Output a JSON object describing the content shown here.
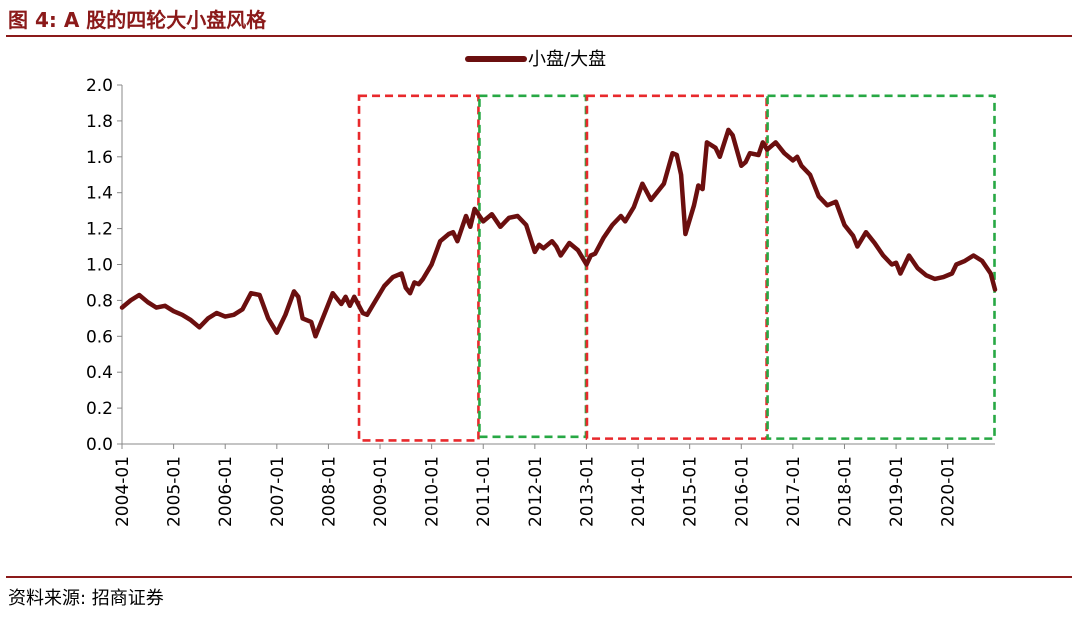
{
  "figure": {
    "title": "图 4:  A 股的四轮大小盘风格",
    "source": "资料来源:  招商证券"
  },
  "colors": {
    "accent": "#8B1A1A",
    "series_line": "#6B0F0F",
    "red_box": "#E8292C",
    "green_box": "#27A844"
  },
  "chart_data": {
    "type": "line",
    "title": "",
    "xlabel": "",
    "ylabel": "",
    "ylim": [
      0,
      2.0
    ],
    "yticks": [
      "0.0",
      "0.2",
      "0.4",
      "0.6",
      "0.8",
      "1.0",
      "1.2",
      "1.4",
      "1.6",
      "1.8",
      "2.0"
    ],
    "xticks": [
      "2004-01",
      "2005-01",
      "2006-01",
      "2007-01",
      "2008-01",
      "2009-01",
      "2010-01",
      "2011-01",
      "2012-01",
      "2013-01",
      "2014-01",
      "2015-01",
      "2016-01",
      "2017-01",
      "2018-01",
      "2019-01",
      "2020-01"
    ],
    "xrange": [
      "2004-01",
      "2020-12"
    ],
    "grid": false,
    "legend": {
      "position": "top-center"
    },
    "series": [
      {
        "name": "小盘/大盘",
        "points": [
          [
            "2004-01",
            0.76
          ],
          [
            "2004-03",
            0.8
          ],
          [
            "2004-05",
            0.83
          ],
          [
            "2004-07",
            0.79
          ],
          [
            "2004-09",
            0.76
          ],
          [
            "2004-11",
            0.77
          ],
          [
            "2005-01",
            0.74
          ],
          [
            "2005-03",
            0.72
          ],
          [
            "2005-05",
            0.69
          ],
          [
            "2005-07",
            0.65
          ],
          [
            "2005-09",
            0.7
          ],
          [
            "2005-11",
            0.73
          ],
          [
            "2006-01",
            0.71
          ],
          [
            "2006-03",
            0.72
          ],
          [
            "2006-05",
            0.75
          ],
          [
            "2006-07",
            0.84
          ],
          [
            "2006-09",
            0.83
          ],
          [
            "2006-11",
            0.7
          ],
          [
            "2007-01",
            0.62
          ],
          [
            "2007-03",
            0.72
          ],
          [
            "2007-05",
            0.85
          ],
          [
            "2007-06",
            0.82
          ],
          [
            "2007-07",
            0.7
          ],
          [
            "2007-09",
            0.68
          ],
          [
            "2007-10",
            0.6
          ],
          [
            "2007-12",
            0.72
          ],
          [
            "2008-02",
            0.84
          ],
          [
            "2008-04",
            0.78
          ],
          [
            "2008-05",
            0.82
          ],
          [
            "2008-06",
            0.77
          ],
          [
            "2008-07",
            0.82
          ],
          [
            "2008-09",
            0.73
          ],
          [
            "2008-10",
            0.72
          ],
          [
            "2008-12",
            0.8
          ],
          [
            "2009-02",
            0.88
          ],
          [
            "2009-04",
            0.93
          ],
          [
            "2009-06",
            0.95
          ],
          [
            "2009-07",
            0.87
          ],
          [
            "2009-08",
            0.84
          ],
          [
            "2009-09",
            0.9
          ],
          [
            "2009-10",
            0.89
          ],
          [
            "2009-11",
            0.92
          ],
          [
            "2010-01",
            1.0
          ],
          [
            "2010-03",
            1.13
          ],
          [
            "2010-05",
            1.17
          ],
          [
            "2010-06",
            1.18
          ],
          [
            "2010-07",
            1.13
          ],
          [
            "2010-09",
            1.27
          ],
          [
            "2010-10",
            1.21
          ],
          [
            "2010-11",
            1.31
          ],
          [
            "2011-01",
            1.24
          ],
          [
            "2011-03",
            1.28
          ],
          [
            "2011-05",
            1.21
          ],
          [
            "2011-07",
            1.26
          ],
          [
            "2011-09",
            1.27
          ],
          [
            "2011-11",
            1.22
          ],
          [
            "2012-01",
            1.07
          ],
          [
            "2012-02",
            1.11
          ],
          [
            "2012-03",
            1.09
          ],
          [
            "2012-05",
            1.13
          ],
          [
            "2012-06",
            1.1
          ],
          [
            "2012-07",
            1.05
          ],
          [
            "2012-09",
            1.12
          ],
          [
            "2012-11",
            1.08
          ],
          [
            "2013-01",
            1.0
          ],
          [
            "2013-02",
            1.05
          ],
          [
            "2013-03",
            1.06
          ],
          [
            "2013-05",
            1.15
          ],
          [
            "2013-07",
            1.22
          ],
          [
            "2013-09",
            1.27
          ],
          [
            "2013-10",
            1.24
          ],
          [
            "2013-12",
            1.32
          ],
          [
            "2014-02",
            1.45
          ],
          [
            "2014-04",
            1.36
          ],
          [
            "2014-06",
            1.42
          ],
          [
            "2014-07",
            1.45
          ],
          [
            "2014-09",
            1.62
          ],
          [
            "2014-10",
            1.61
          ],
          [
            "2014-11",
            1.5
          ],
          [
            "2014-12",
            1.17
          ],
          [
            "2015-02",
            1.33
          ],
          [
            "2015-03",
            1.44
          ],
          [
            "2015-04",
            1.42
          ],
          [
            "2015-05",
            1.68
          ],
          [
            "2015-07",
            1.65
          ],
          [
            "2015-08",
            1.6
          ],
          [
            "2015-10",
            1.75
          ],
          [
            "2015-11",
            1.72
          ],
          [
            "2016-01",
            1.55
          ],
          [
            "2016-02",
            1.57
          ],
          [
            "2016-03",
            1.62
          ],
          [
            "2016-05",
            1.61
          ],
          [
            "2016-06",
            1.68
          ],
          [
            "2016-07",
            1.64
          ],
          [
            "2016-09",
            1.68
          ],
          [
            "2016-11",
            1.62
          ],
          [
            "2017-01",
            1.58
          ],
          [
            "2017-02",
            1.6
          ],
          [
            "2017-03",
            1.55
          ],
          [
            "2017-05",
            1.5
          ],
          [
            "2017-07",
            1.38
          ],
          [
            "2017-09",
            1.33
          ],
          [
            "2017-11",
            1.35
          ],
          [
            "2018-01",
            1.22
          ],
          [
            "2018-03",
            1.16
          ],
          [
            "2018-04",
            1.1
          ],
          [
            "2018-06",
            1.18
          ],
          [
            "2018-08",
            1.12
          ],
          [
            "2018-10",
            1.05
          ],
          [
            "2018-12",
            1.0
          ],
          [
            "2019-01",
            1.01
          ],
          [
            "2019-02",
            0.95
          ],
          [
            "2019-04",
            1.05
          ],
          [
            "2019-06",
            0.98
          ],
          [
            "2019-08",
            0.94
          ],
          [
            "2019-10",
            0.92
          ],
          [
            "2019-12",
            0.93
          ],
          [
            "2020-02",
            0.95
          ],
          [
            "2020-03",
            1.0
          ],
          [
            "2020-05",
            1.02
          ],
          [
            "2020-07",
            1.05
          ],
          [
            "2020-09",
            1.02
          ],
          [
            "2020-11",
            0.95
          ],
          [
            "2020-12",
            0.86
          ]
        ]
      }
    ],
    "regions": [
      {
        "color": "red",
        "start": "2008-08",
        "end": "2010-12",
        "top": 1.94,
        "bottom": 0.02
      },
      {
        "color": "green",
        "start": "2010-12",
        "end": "2013-01",
        "top": 1.94,
        "bottom": 0.04
      },
      {
        "color": "red",
        "start": "2013-01",
        "end": "2016-07",
        "top": 1.94,
        "bottom": 0.03
      },
      {
        "color": "green",
        "start": "2016-07",
        "end": "2020-12",
        "top": 1.94,
        "bottom": 0.03
      }
    ]
  }
}
